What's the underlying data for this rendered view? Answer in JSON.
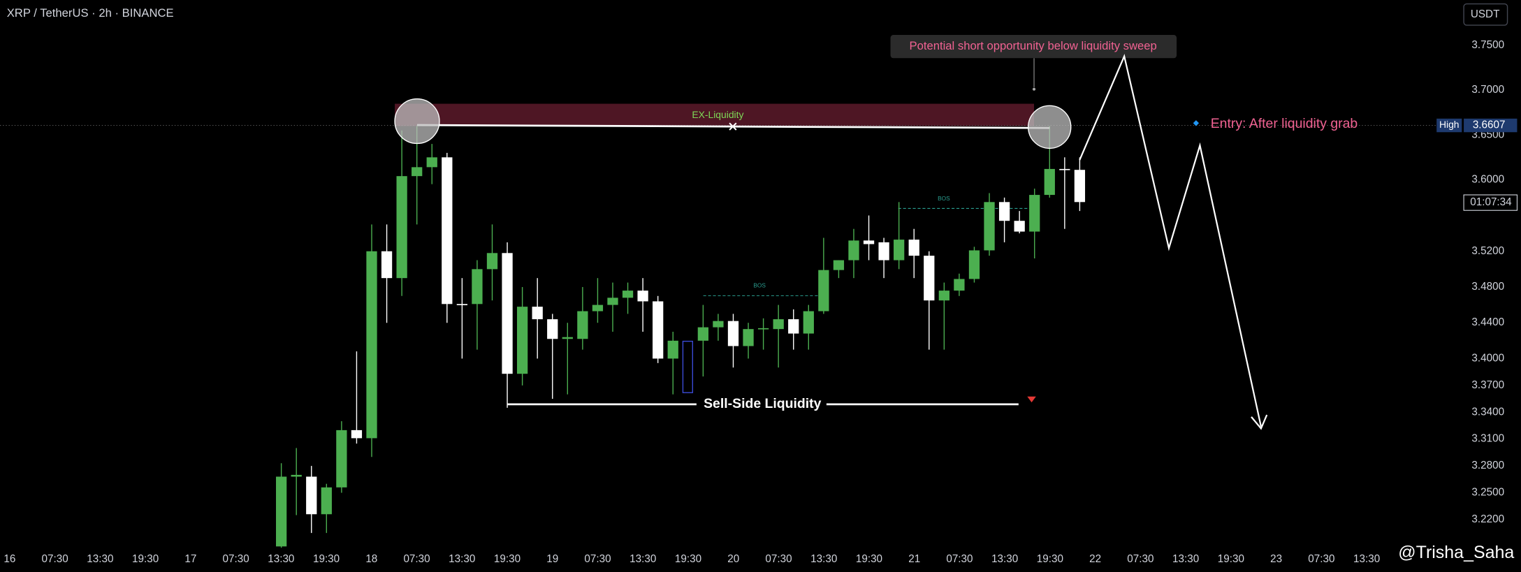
{
  "chart_data": {
    "type": "candlestick",
    "title": "XRP / TetherUS · 2h · BINANCE",
    "quote": "USDT",
    "up_color": "#4caf50",
    "down_color": "#ffffff",
    "grid": false,
    "ylim": [
      3.1885,
      3.8009
    ],
    "yticks": [
      {
        "value": 3.75,
        "label": "3.7500"
      },
      {
        "value": 3.7,
        "label": "3.7000"
      },
      {
        "value": 3.65,
        "label": "3.6500"
      },
      {
        "value": 3.6,
        "label": "3.6000"
      },
      {
        "value": 3.52,
        "label": "3.5200"
      },
      {
        "value": 3.48,
        "label": "3.4800"
      },
      {
        "value": 3.44,
        "label": "3.4400"
      },
      {
        "value": 3.4,
        "label": "3.4000"
      },
      {
        "value": 3.37,
        "label": "3.3700"
      },
      {
        "value": 3.34,
        "label": "3.3400"
      },
      {
        "value": 3.31,
        "label": "3.3100"
      },
      {
        "value": 3.28,
        "label": "3.2800"
      },
      {
        "value": 3.25,
        "label": "3.2500"
      },
      {
        "value": 3.22,
        "label": "3.2200"
      }
    ],
    "x_labels": [
      "16",
      "07:30",
      "13:30",
      "19:30",
      "17",
      "07:30",
      "13:30",
      "19:30",
      "18",
      "07:30",
      "13:30",
      "19:30",
      "19",
      "07:30",
      "13:30",
      "19:30",
      "20",
      "07:30",
      "13:30",
      "19:30",
      "21",
      "07:30",
      "13:30",
      "19:30",
      "22",
      "07:30",
      "13:30",
      "19:30",
      "23",
      "07:30",
      "13:30"
    ],
    "open": [
      3.19,
      3.268,
      3.268,
      3.226,
      3.256,
      3.32,
      3.311,
      3.52,
      3.49,
      3.604,
      3.614,
      3.625,
      3.461,
      3.461,
      3.5,
      3.518,
      3.383,
      3.458,
      3.444,
      3.422,
      3.422,
      3.453,
      3.46,
      3.468,
      3.476,
      3.464,
      3.4,
      null,
      3.42,
      3.435,
      3.442,
      3.414,
      3.433,
      3.433,
      3.444,
      3.428,
      3.453,
      3.499,
      3.51,
      3.532,
      3.53,
      3.51,
      3.533,
      3.515,
      3.465,
      3.476,
      3.489,
      3.521,
      3.575,
      3.554,
      3.542,
      3.583,
      3.612,
      3.611
    ],
    "high": [
      3.283,
      3.3,
      3.28,
      3.26,
      3.33,
      3.408,
      3.55,
      3.55,
      3.655,
      3.66,
      3.64,
      3.63,
      3.49,
      3.51,
      3.55,
      3.53,
      3.48,
      3.49,
      3.45,
      3.44,
      3.48,
      3.49,
      3.485,
      3.485,
      3.49,
      3.47,
      3.43,
      null,
      3.46,
      3.45,
      3.45,
      3.44,
      3.445,
      3.46,
      3.455,
      3.46,
      3.535,
      3.51,
      3.545,
      3.56,
      3.535,
      3.575,
      3.545,
      3.52,
      3.485,
      3.495,
      3.525,
      3.585,
      3.58,
      3.565,
      3.59,
      3.66,
      3.625,
      3.625
    ],
    "low": [
      3.17,
      3.225,
      3.205,
      3.205,
      3.25,
      3.305,
      3.29,
      3.44,
      3.47,
      3.55,
      3.595,
      3.44,
      3.4,
      3.41,
      3.465,
      3.345,
      3.37,
      3.4,
      3.355,
      3.36,
      3.41,
      3.44,
      3.43,
      3.45,
      3.43,
      3.395,
      3.36,
      null,
      3.38,
      3.42,
      3.39,
      3.4,
      3.41,
      3.39,
      3.41,
      3.41,
      3.45,
      3.49,
      3.49,
      3.51,
      3.49,
      3.5,
      3.49,
      3.41,
      3.41,
      3.47,
      3.485,
      3.515,
      3.53,
      3.54,
      3.512,
      3.58,
      3.545,
      3.565
    ],
    "close": [
      3.268,
      3.27,
      3.226,
      3.256,
      3.32,
      3.311,
      3.52,
      3.49,
      3.604,
      3.614,
      3.625,
      3.461,
      3.46,
      3.5,
      3.518,
      3.383,
      3.458,
      3.444,
      3.422,
      3.424,
      3.453,
      3.46,
      3.468,
      3.476,
      3.464,
      3.4,
      3.42,
      null,
      3.435,
      3.442,
      3.414,
      3.433,
      3.434,
      3.444,
      3.428,
      3.453,
      3.499,
      3.51,
      3.532,
      3.528,
      3.51,
      3.533,
      3.515,
      3.465,
      3.476,
      3.489,
      3.521,
      3.575,
      3.554,
      3.542,
      3.583,
      3.612,
      3.611,
      3.575
    ],
    "high_line": {
      "label": "High",
      "value": 3.6607
    },
    "countdown": "01:07:34",
    "annotations": {
      "callout": "Potential short opportunity below liquidity sweep",
      "zone_label": "EX-Liquidity",
      "entry": "Entry: After liquidity grab",
      "sell_side": "Sell-Side Liquidity",
      "bos": [
        "BOS",
        "BOS"
      ]
    },
    "watermark": "@Trisha_Saha"
  }
}
